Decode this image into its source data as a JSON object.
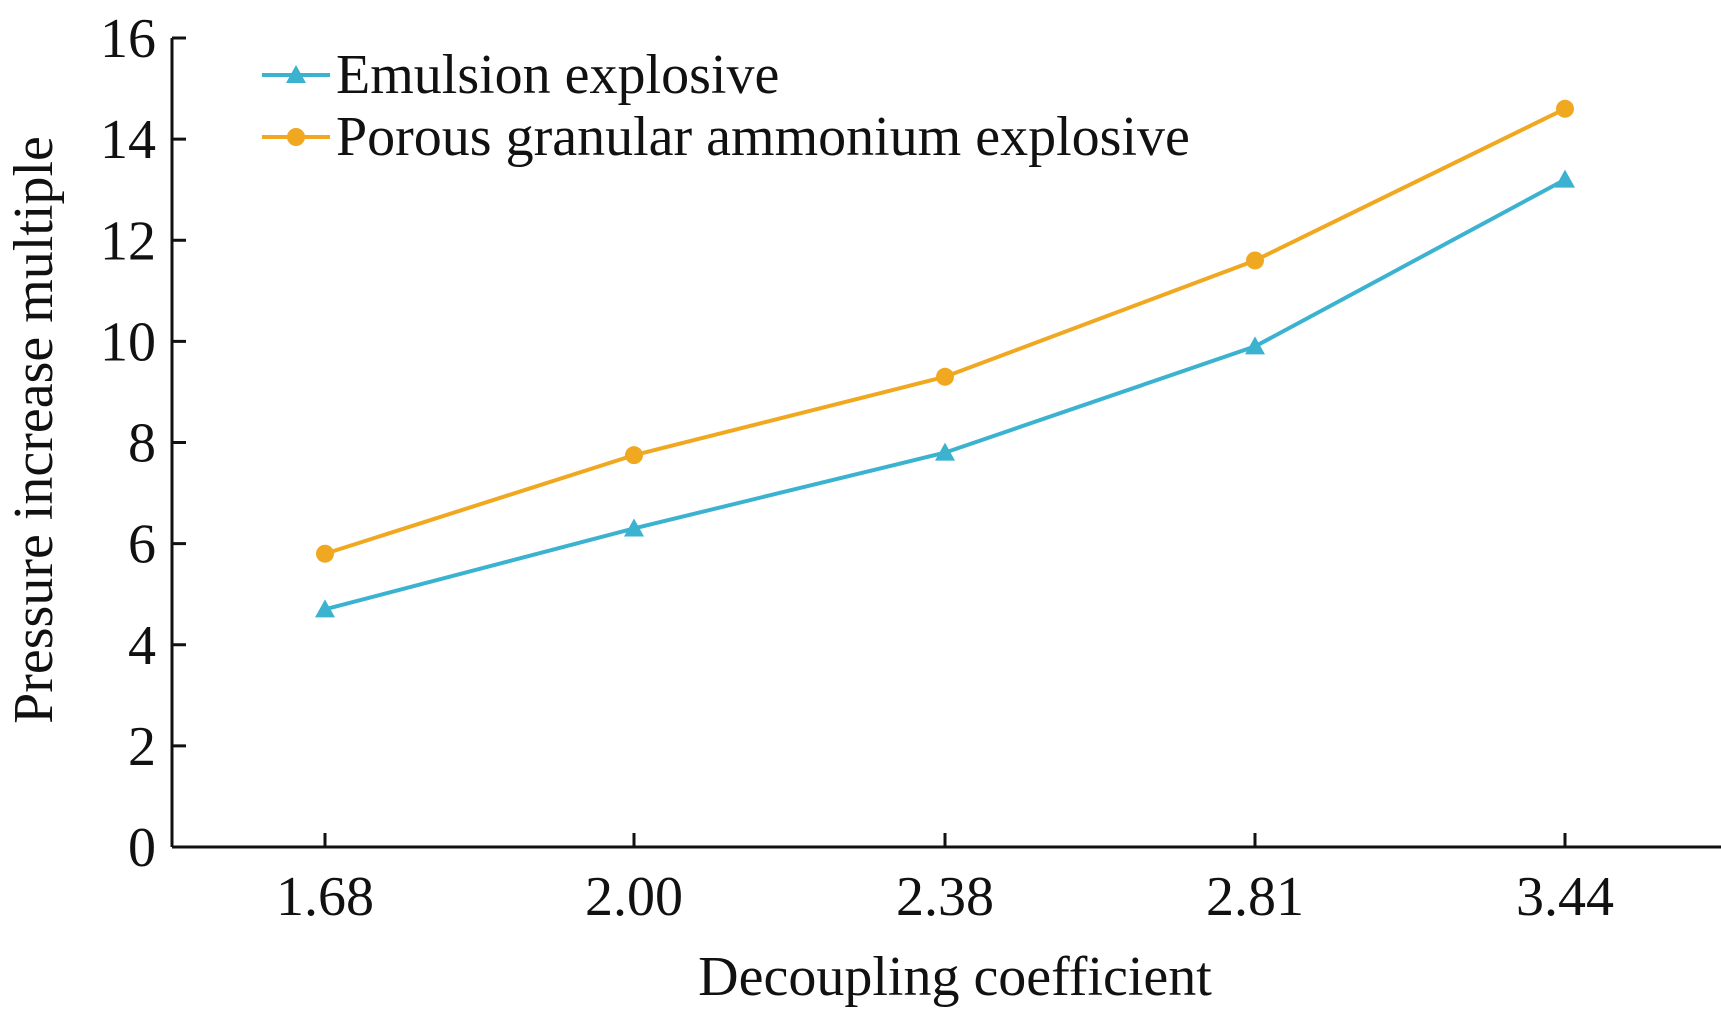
{
  "chart_data": {
    "type": "line",
    "title": "",
    "xlabel": "Decoupling coefficient",
    "ylabel": "Pressure increase multiple",
    "categories": [
      "1.68",
      "2.00",
      "2.38",
      "2.81",
      "3.44"
    ],
    "ylim": [
      0,
      16
    ],
    "yticks": [
      "0",
      "2",
      "4",
      "6",
      "8",
      "10",
      "12",
      "14",
      "16"
    ],
    "grid": false,
    "legend_position": "top-left",
    "series": [
      {
        "name": "Emulsion explosive",
        "marker": "triangle",
        "color": "#3bb3d0",
        "values": [
          4.7,
          6.3,
          7.8,
          9.9,
          13.2
        ]
      },
      {
        "name": "Porous granular ammonium explosive",
        "marker": "circle",
        "color": "#f0a820",
        "values": [
          5.8,
          7.75,
          9.3,
          11.6,
          14.6
        ]
      }
    ]
  }
}
